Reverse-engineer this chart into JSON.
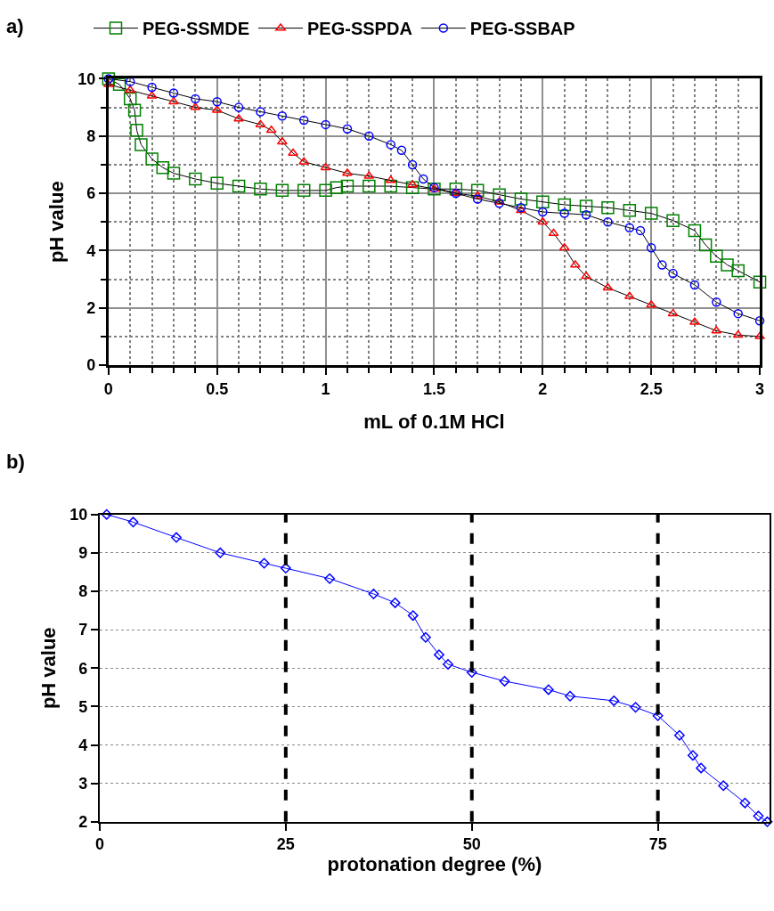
{
  "chart_data": [
    {
      "type": "line",
      "title": "a)",
      "xlabel": "mL of 0.1M HCl",
      "ylabel": "pH value",
      "xlim": [
        0,
        3
      ],
      "xticks": [
        0,
        0.5,
        1,
        1.5,
        2,
        2.5,
        3
      ],
      "ylim": [
        0,
        10
      ],
      "yticks": [
        0,
        2,
        4,
        6,
        8,
        10
      ],
      "grid": true,
      "legend": "top",
      "series": [
        {
          "name": "PEG-SSMDE",
          "color": "#008000",
          "marker": "square",
          "x": [
            0,
            0.05,
            0.1,
            0.12,
            0.13,
            0.15,
            0.2,
            0.25,
            0.3,
            0.4,
            0.5,
            0.6,
            0.7,
            0.8,
            0.9,
            1.0,
            1.05,
            1.1,
            1.2,
            1.3,
            1.4,
            1.5,
            1.6,
            1.7,
            1.8,
            1.9,
            2.0,
            2.1,
            2.2,
            2.3,
            2.4,
            2.5,
            2.6,
            2.7,
            2.75,
            2.8,
            2.85,
            2.9,
            3.0
          ],
          "values": [
            10,
            9.8,
            9.3,
            8.9,
            8.2,
            7.7,
            7.2,
            6.9,
            6.7,
            6.5,
            6.35,
            6.25,
            6.15,
            6.1,
            6.1,
            6.1,
            6.2,
            6.25,
            6.25,
            6.25,
            6.2,
            6.15,
            6.15,
            6.1,
            5.95,
            5.8,
            5.7,
            5.6,
            5.55,
            5.5,
            5.4,
            5.3,
            5.05,
            4.7,
            4.2,
            3.8,
            3.5,
            3.3,
            2.9
          ]
        },
        {
          "name": "PEG-SSPDA",
          "color": "#ff0000",
          "marker": "triangle",
          "x": [
            0,
            0.1,
            0.2,
            0.3,
            0.4,
            0.5,
            0.6,
            0.7,
            0.75,
            0.8,
            0.85,
            0.9,
            1.0,
            1.1,
            1.2,
            1.3,
            1.4,
            1.5,
            1.6,
            1.7,
            1.8,
            1.9,
            2.0,
            2.05,
            2.1,
            2.15,
            2.2,
            2.3,
            2.4,
            2.5,
            2.6,
            2.7,
            2.8,
            2.9,
            3.0
          ],
          "values": [
            9.8,
            9.6,
            9.4,
            9.2,
            9.0,
            8.9,
            8.6,
            8.4,
            8.2,
            7.8,
            7.4,
            7.1,
            6.9,
            6.7,
            6.6,
            6.45,
            6.3,
            6.15,
            6.0,
            5.9,
            5.7,
            5.4,
            5.0,
            4.6,
            4.1,
            3.5,
            3.1,
            2.7,
            2.4,
            2.1,
            1.8,
            1.5,
            1.2,
            1.05,
            1.0
          ]
        },
        {
          "name": "PEG-SSBAP",
          "color": "#0000ff",
          "marker": "circle",
          "x": [
            0,
            0.1,
            0.2,
            0.3,
            0.4,
            0.5,
            0.6,
            0.7,
            0.8,
            0.9,
            1.0,
            1.1,
            1.2,
            1.3,
            1.35,
            1.4,
            1.45,
            1.5,
            1.6,
            1.7,
            1.8,
            1.9,
            2.0,
            2.1,
            2.2,
            2.3,
            2.4,
            2.45,
            2.5,
            2.55,
            2.6,
            2.7,
            2.8,
            2.9,
            3.0
          ],
          "values": [
            10,
            9.9,
            9.7,
            9.5,
            9.3,
            9.2,
            9.0,
            8.85,
            8.7,
            8.55,
            8.4,
            8.25,
            8.0,
            7.7,
            7.5,
            7.0,
            6.5,
            6.2,
            6.0,
            5.8,
            5.65,
            5.5,
            5.35,
            5.3,
            5.25,
            5.0,
            4.8,
            4.7,
            4.1,
            3.5,
            3.2,
            2.8,
            2.2,
            1.8,
            1.55
          ]
        }
      ]
    },
    {
      "type": "line",
      "title": "b)",
      "xlabel": "protonation degree (%)",
      "ylabel": "pH value",
      "xlim": [
        0,
        90
      ],
      "xticks": [
        0,
        25,
        50,
        75
      ],
      "ylim": [
        2,
        10
      ],
      "yticks": [
        2,
        3,
        4,
        5,
        6,
        7,
        8,
        9,
        10
      ],
      "grid": "y",
      "marker": "diamond",
      "series": [
        {
          "color": "#0000ff",
          "x": [
            0.94,
            4.5,
            10.3,
            16.2,
            22.1,
            25,
            30.9,
            36.8,
            39.7,
            42.1,
            43.8,
            45.6,
            46.8,
            50,
            54.4,
            60.3,
            63.2,
            69.1,
            72.0,
            75,
            77.9,
            79.7,
            80.8,
            83.8,
            86.7,
            88.5,
            89.7
          ],
          "values": [
            10.0,
            9.8,
            9.4,
            9.0,
            8.73,
            8.6,
            8.33,
            7.93,
            7.7,
            7.37,
            6.8,
            6.35,
            6.1,
            5.89,
            5.66,
            5.44,
            5.27,
            5.15,
            4.98,
            4.76,
            4.25,
            3.73,
            3.4,
            2.94,
            2.49,
            2.15,
            2.0
          ]
        }
      ],
      "ref_lines": [
        {
          "axis": "x",
          "value": 25,
          "color": "#000000",
          "line_style": "dashed"
        },
        {
          "axis": "x",
          "value": 50,
          "color": "#000000",
          "line_style": "dashed"
        },
        {
          "axis": "x",
          "value": 75,
          "color": "#000000",
          "line_style": "dashed"
        }
      ]
    }
  ]
}
